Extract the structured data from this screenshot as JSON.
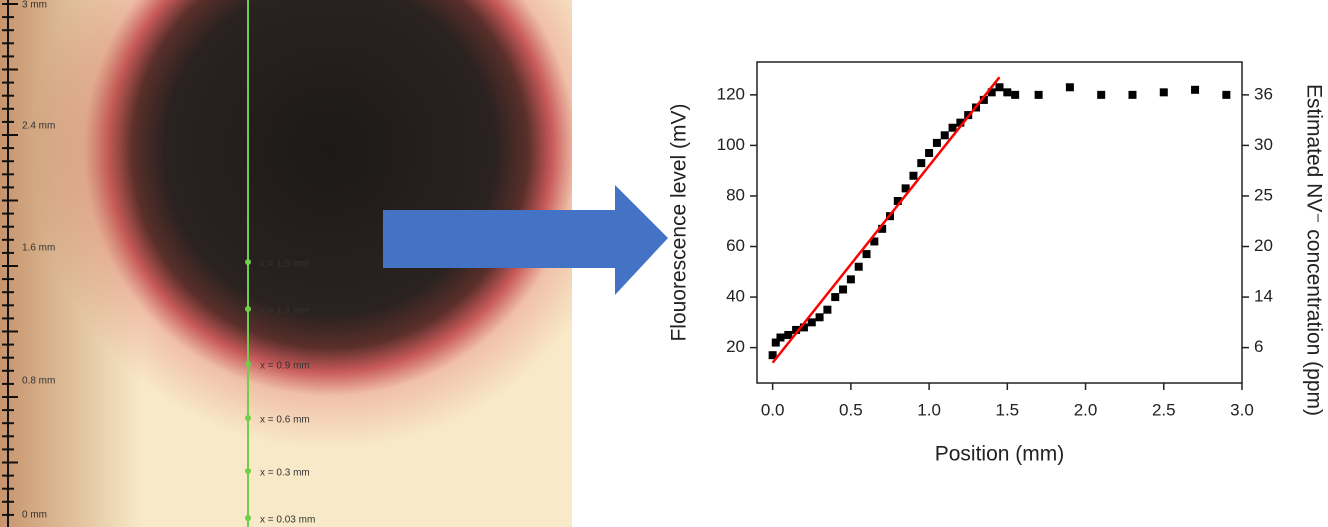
{
  "image": {
    "scale_labels": [
      "3 mm",
      "2.4 mm",
      "1.6 mm",
      "0.8 mm",
      "0 mm"
    ],
    "line_labels": [
      "x = 1.5 mm",
      "x = 1.3 mm",
      "x = 0.9 mm",
      "x = 0.6 mm",
      "x = 0.3 mm",
      "x = 0.03 mm"
    ]
  },
  "chart_data": {
    "type": "scatter",
    "xlabel": "Position (mm)",
    "ylabel": "Flouorescence level (mV)",
    "y2label": "Estimated NV⁻ concentration (ppm)",
    "xlim": [
      -0.1,
      3.0
    ],
    "ylim": [
      6,
      133
    ],
    "xticks": [
      {
        "value": 0,
        "label": "0.0"
      },
      0.5,
      {
        "value": 1,
        "label": "1.0"
      },
      1.5,
      {
        "value": 2,
        "label": "2.0"
      },
      2.5,
      {
        "value": 3,
        "label": "3.0"
      }
    ],
    "yticks": [
      20,
      40,
      60,
      80,
      100,
      120
    ],
    "y2_tick_labels": [
      "6",
      "14",
      "20",
      "25",
      "30",
      "36"
    ],
    "series": [
      {
        "color": "#000000",
        "x": [
          0,
          0.02,
          0.05,
          0.1,
          0.15,
          0.2,
          0.25,
          0.3,
          0.35,
          0.4,
          0.45,
          0.5,
          0.55,
          0.6,
          0.65,
          0.7,
          0.75,
          0.8,
          0.85,
          0.9,
          0.95,
          1.0,
          1.05,
          1.1,
          1.15,
          1.2,
          1.25,
          1.3,
          1.35,
          1.4,
          1.45,
          1.5,
          1.55,
          1.7,
          1.9,
          2.1,
          2.3,
          2.5,
          2.7,
          2.9
        ],
        "values": [
          17,
          22,
          24,
          25,
          27,
          28,
          30,
          32,
          35,
          40,
          43,
          47,
          52,
          57,
          62,
          67,
          72,
          78,
          83,
          88,
          93,
          97,
          101,
          104,
          107,
          109,
          112,
          115,
          118,
          121,
          123,
          121,
          120,
          120,
          123,
          120,
          120,
          121,
          122,
          120
        ]
      },
      {
        "color": "#ff0000",
        "line": true,
        "x": [
          0,
          1.45
        ],
        "values": [
          14,
          127
        ]
      }
    ]
  }
}
